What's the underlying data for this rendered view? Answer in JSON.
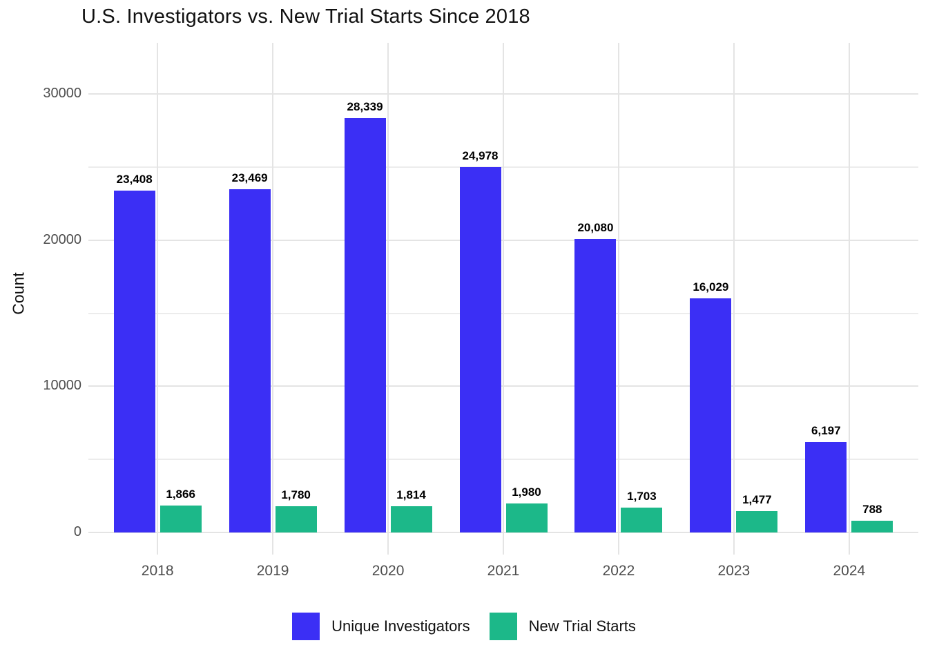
{
  "title": "U.S. Investigators vs. New Trial Starts Since 2018",
  "chart_data": {
    "type": "bar",
    "title": "U.S. Investigators vs. New Trial Starts Since 2018",
    "xlabel": "",
    "ylabel": "Count",
    "categories": [
      "2018",
      "2019",
      "2020",
      "2021",
      "2022",
      "2023",
      "2024"
    ],
    "series": [
      {
        "name": "Unique Investigators",
        "color": "#3b2ff5",
        "values": [
          23408,
          23469,
          28339,
          24978,
          20080,
          16029,
          6197
        ],
        "labels": [
          "23,408",
          "23,469",
          "28,339",
          "24,978",
          "20,080",
          "16,029",
          "6,197"
        ]
      },
      {
        "name": "New Trial Starts",
        "color": "#1cb889",
        "values": [
          1866,
          1780,
          1814,
          1980,
          1703,
          1477,
          788
        ],
        "labels": [
          "1,866",
          "1,780",
          "1,814",
          "1,980",
          "1,703",
          "1,477",
          "788"
        ]
      }
    ],
    "ylim": [
      0,
      33500
    ],
    "yticks": [
      0,
      10000,
      20000,
      30000
    ],
    "ytick_labels": [
      "0",
      "10000",
      "20000",
      "30000"
    ],
    "yticks_minor": [
      5000,
      15000,
      25000
    ],
    "grid": true,
    "legend_position": "bottom"
  }
}
